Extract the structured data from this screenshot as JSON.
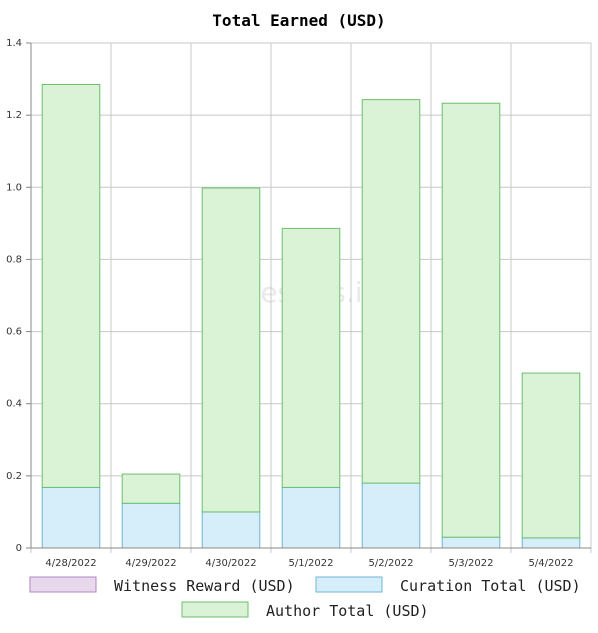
{
  "chart_data": {
    "type": "bar",
    "stacked": true,
    "title": "Total Earned (USD)",
    "watermark": "hivestats.io",
    "categories": [
      "4/28/2022",
      "4/29/2022",
      "4/30/2022",
      "5/1/2022",
      "5/2/2022",
      "5/3/2022",
      "5/4/2022"
    ],
    "series": [
      {
        "name": "Witness Reward (USD)",
        "values": [
          0,
          0,
          0,
          0,
          0,
          0,
          0
        ],
        "fill": "#e8d8ec",
        "stroke": "#b084bf"
      },
      {
        "name": "Curation Total (USD)",
        "values": [
          0.168,
          0.124,
          0.1,
          0.168,
          0.18,
          0.03,
          0.028
        ],
        "fill": "#d6eef9",
        "stroke": "#6fb5d6"
      },
      {
        "name": "Author Total (USD)",
        "values": [
          1.117,
          0.081,
          0.898,
          0.718,
          1.063,
          1.203,
          0.457
        ],
        "fill": "#daf3d6",
        "stroke": "#6cbf6c"
      }
    ],
    "ylim": [
      0,
      1.4
    ],
    "yticks": [
      "0",
      "0.2",
      "0.4",
      "0.6",
      "0.8",
      "1.0",
      "1.2",
      "1.4"
    ],
    "grid": true,
    "legend_position": "bottom"
  }
}
